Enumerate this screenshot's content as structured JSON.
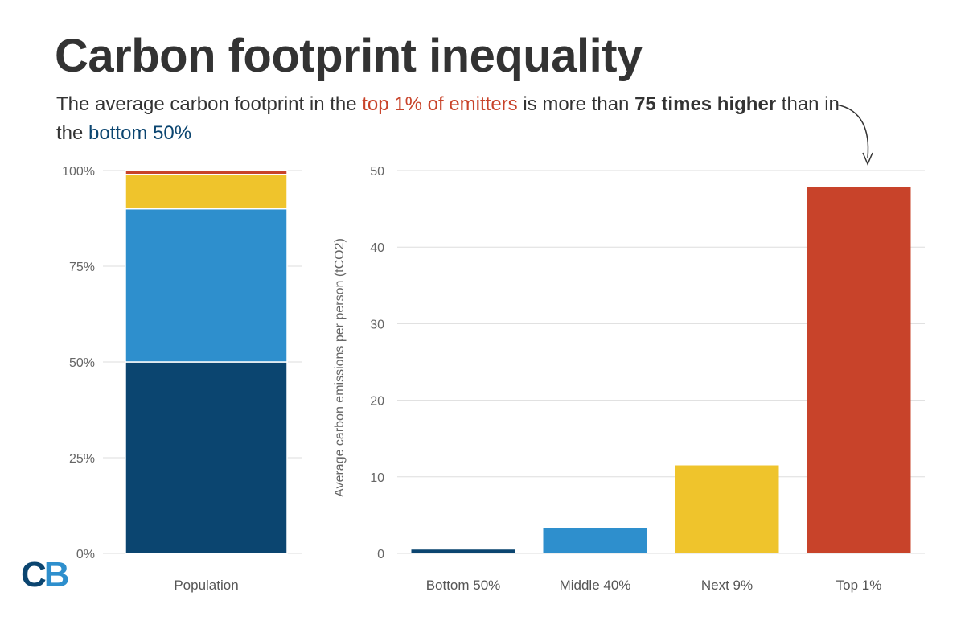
{
  "header": {
    "title": "Carbon footprint inequality",
    "subtitle": {
      "part1": "The average carbon footprint in the ",
      "highlight_top": "top 1% of emitters",
      "part2": " is more than ",
      "bold": "75 times higher",
      "part3": " than in the ",
      "highlight_bottom": "bottom 50%"
    }
  },
  "logo": {
    "c": "C",
    "b": "B",
    "c_color": "#0b4570",
    "b_color": "#2e8fcd"
  },
  "colors": {
    "bottom50": "#0b4570",
    "middle40": "#2e8fcd",
    "next9": "#efc42c",
    "top1": "#c8432a",
    "grid": "#dddddd"
  },
  "chart_data": [
    {
      "type": "bar",
      "stacked": true,
      "categories": [
        "Population"
      ],
      "series": [
        {
          "segment": "Bottom 50%",
          "values": [
            50
          ],
          "color": "#0b4570"
        },
        {
          "segment": "Middle 40%",
          "values": [
            40
          ],
          "color": "#2e8fcd"
        },
        {
          "segment": "Next 9%",
          "values": [
            9
          ],
          "color": "#efc42c"
        },
        {
          "segment": "Top 1%",
          "values": [
            1
          ],
          "color": "#c8432a"
        }
      ],
      "yticks": [
        "0%",
        "25%",
        "50%",
        "75%",
        "100%"
      ],
      "ylim": [
        0,
        100
      ],
      "grid": true
    },
    {
      "type": "bar",
      "categories": [
        "Bottom 50%",
        "Middle 40%",
        "Next 9%",
        "Top 1%"
      ],
      "values": [
        0.5,
        3.3,
        11.5,
        47.8
      ],
      "colors": [
        "#0b4570",
        "#2e8fcd",
        "#efc42c",
        "#c8432a"
      ],
      "ylabel": "Average carbon emissions per person (tCO2)",
      "yticks": [
        0,
        10,
        20,
        30,
        40,
        50
      ],
      "ylim": [
        0,
        50
      ],
      "grid": true,
      "annotation": "arrow pointing to Top 1% bar"
    }
  ]
}
